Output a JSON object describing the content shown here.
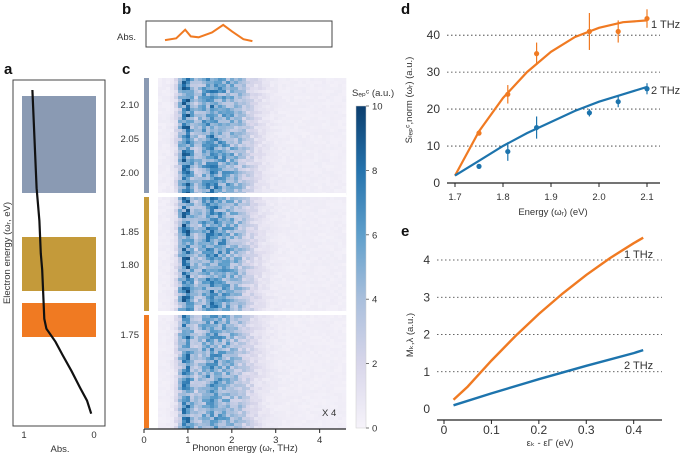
{
  "colors": {
    "orange": "#f07a22",
    "blue": "#1d74ad",
    "slate": "#8a9ab3",
    "gold": "#c49a3a",
    "heat_dark": "#0b3e6e",
    "heat_light": "#f6f3fa"
  },
  "panel_labels": {
    "a": "a",
    "b": "b",
    "c": "c",
    "d": "d",
    "e": "e"
  },
  "chart_data": [
    {
      "id": "a",
      "type": "line",
      "xlabel": "Abs.",
      "ylabel": "Electron energy (ωᵣ, eV)",
      "x_ticks": [
        "1",
        "0"
      ],
      "xlim": [
        1,
        0
      ],
      "bands": [
        "slate",
        "gold",
        "orange"
      ],
      "curve": [
        [
          0.88,
          0.0
        ],
        [
          0.87,
          0.05
        ],
        [
          0.86,
          0.1
        ],
        [
          0.85,
          0.15
        ],
        [
          0.84,
          0.2
        ],
        [
          0.83,
          0.25
        ],
        [
          0.82,
          0.3
        ],
        [
          0.8,
          0.35
        ],
        [
          0.78,
          0.4
        ],
        [
          0.77,
          0.45
        ],
        [
          0.76,
          0.5
        ],
        [
          0.74,
          0.55
        ],
        [
          0.73,
          0.6
        ],
        [
          0.72,
          0.65
        ],
        [
          0.71,
          0.7
        ],
        [
          0.68,
          0.73
        ],
        [
          0.55,
          0.77
        ],
        [
          0.45,
          0.81
        ],
        [
          0.32,
          0.86
        ],
        [
          0.2,
          0.91
        ],
        [
          0.1,
          0.95
        ],
        [
          0.04,
          0.99
        ]
      ]
    },
    {
      "id": "b",
      "type": "line",
      "ylabel": "Abs.",
      "curve": [
        [
          0.0,
          0.15
        ],
        [
          0.1,
          0.25
        ],
        [
          0.18,
          0.7
        ],
        [
          0.23,
          0.35
        ],
        [
          0.3,
          0.3
        ],
        [
          0.42,
          0.55
        ],
        [
          0.52,
          0.95
        ],
        [
          0.6,
          0.6
        ],
        [
          0.7,
          0.2
        ],
        [
          0.78,
          0.1
        ]
      ]
    },
    {
      "id": "c",
      "type": "heatmap",
      "xlabel": "Phonon energy (ωᵣ, THz)",
      "x_ticks": [
        "0",
        "1",
        "2",
        "3",
        "4"
      ],
      "xlim": [
        0,
        4.6
      ],
      "y_ticks": [
        "2.10",
        "2.05",
        "2.00",
        "1.85",
        "1.80",
        "1.75"
      ],
      "colorbar_label": "Sₑₚᶜ (a.u.)",
      "colorbar_ticks": [
        "10",
        "8",
        "6",
        "4",
        "2",
        "0"
      ],
      "colorbar_range": [
        0,
        10
      ],
      "annotation": "X 4",
      "segments": [
        "slate",
        "gold",
        "orange"
      ],
      "intensity_peaks": [
        {
          "center_thz": 0.95,
          "width_thz": 0.12,
          "amplitude": 6.5
        },
        {
          "center_thz": 1.85,
          "width_thz": 0.45,
          "amplitude": 4.8
        },
        {
          "center_thz": 1.45,
          "width_thz": 0.2,
          "amplitude": 2.5
        }
      ]
    },
    {
      "id": "d",
      "type": "scatter",
      "xlabel": "Energy (ωᵣ) (eV)",
      "ylabel": "Sₗₑₚᶜ,norm (ωᵣ) (a.u.)",
      "xlim": [
        1.66,
        2.12
      ],
      "ylim": [
        0,
        46
      ],
      "x_ticks": [
        "1.7",
        "1.8",
        "1.9",
        "2.0",
        "2.1"
      ],
      "y_ticks": [
        "0",
        "10",
        "20",
        "30",
        "40"
      ],
      "series": [
        {
          "name": "1 THz",
          "color": "orange",
          "points": [
            [
              1.75,
              13.5,
              0
            ],
            [
              1.81,
              24,
              2.5
            ],
            [
              1.87,
              35,
              3
            ],
            [
              1.98,
              41,
              5
            ],
            [
              2.04,
              41,
              3
            ],
            [
              2.1,
              44.5,
              2.5
            ]
          ],
          "fit": [
            [
              1.7,
              2
            ],
            [
              1.75,
              14
            ],
            [
              1.8,
              23
            ],
            [
              1.85,
              30
            ],
            [
              1.9,
              35.5
            ],
            [
              1.95,
              39.5
            ],
            [
              2.0,
              42
            ],
            [
              2.05,
              43.5
            ],
            [
              2.1,
              44
            ]
          ]
        },
        {
          "name": "2 THz",
          "color": "blue",
          "points": [
            [
              1.75,
              4.5,
              0
            ],
            [
              1.81,
              8.5,
              2.5
            ],
            [
              1.87,
              15,
              3
            ],
            [
              1.98,
              19,
              1
            ],
            [
              2.04,
              22,
              1.5
            ],
            [
              2.1,
              25.5,
              1.5
            ]
          ],
          "fit": [
            [
              1.7,
              2
            ],
            [
              1.75,
              6
            ],
            [
              1.8,
              10
            ],
            [
              1.85,
              13.5
            ],
            [
              1.9,
              16.5
            ],
            [
              1.95,
              19.5
            ],
            [
              2.0,
              22
            ],
            [
              2.05,
              24
            ],
            [
              2.1,
              26
            ]
          ]
        }
      ]
    },
    {
      "id": "e",
      "type": "line",
      "xlabel": "εₖ - εΓ (eV)",
      "ylabel": "Mₖ,λ (a.u.)",
      "xlim": [
        0,
        0.45
      ],
      "ylim": [
        -0.15,
        4.9
      ],
      "x_ticks": [
        "0",
        "0.1",
        "0.2",
        "0.3",
        "0.4"
      ],
      "x_tick_values": [
        0,
        0.1,
        0.2,
        0.3,
        0.4
      ],
      "y_ticks": [
        "0",
        "1",
        "2",
        "3",
        "4"
      ],
      "series": [
        {
          "name": "1 THz",
          "color": "orange",
          "x": [
            0.02,
            0.05,
            0.1,
            0.15,
            0.2,
            0.25,
            0.3,
            0.35,
            0.4,
            0.42
          ],
          "values": [
            0.25,
            0.6,
            1.3,
            1.95,
            2.55,
            3.1,
            3.6,
            4.05,
            4.45,
            4.6
          ]
        },
        {
          "name": "2 THz",
          "color": "blue",
          "x": [
            0.02,
            0.1,
            0.2,
            0.3,
            0.4,
            0.42
          ],
          "values": [
            0.1,
            0.42,
            0.8,
            1.16,
            1.5,
            1.58
          ]
        }
      ]
    }
  ]
}
